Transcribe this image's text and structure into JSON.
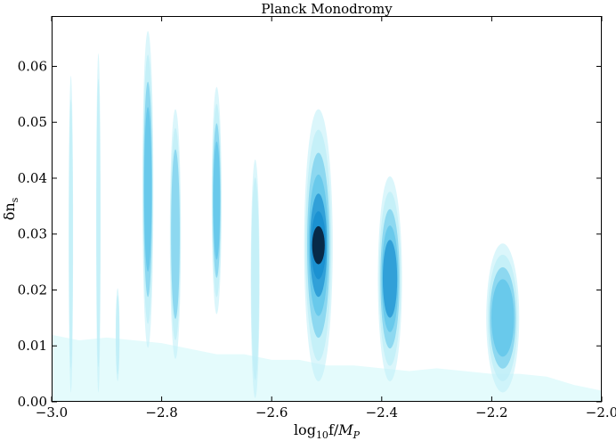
{
  "chart_data": {
    "type": "heatmap",
    "title": "Planck Monodromy",
    "xlabel": "log10f/MP",
    "xlabel_parts": {
      "base": "log",
      "sub": "10",
      "mid": "f/",
      "var": "M",
      "var_sub": "P"
    },
    "ylabel": "δns",
    "ylabel_parts": {
      "base": "δn",
      "sub": "s"
    },
    "xlim": [
      -3.0,
      -2.0
    ],
    "ylim": [
      0.0,
      0.069
    ],
    "x_ticks": [
      -3.0,
      -2.8,
      -2.6,
      -2.4,
      -2.2,
      -2.0
    ],
    "x_tick_labels": [
      "−3.0",
      "−2.8",
      "−2.6",
      "−2.4",
      "−2.2",
      "−2.0"
    ],
    "y_ticks": [
      0.0,
      0.01,
      0.02,
      0.03,
      0.04,
      0.05,
      0.06
    ],
    "y_tick_labels": [
      "0.00",
      "0.01",
      "0.02",
      "0.03",
      "0.04",
      "0.05",
      "0.06"
    ],
    "grid": false,
    "legend": "none",
    "colors": {
      "base": "#e4fbfc",
      "light": "#bdeef7",
      "mid": "#5ec4ea",
      "strong": "#1a8fd0",
      "peak": "#051830"
    },
    "baseline_band": {
      "x": [
        -3.0,
        -2.95,
        -2.9,
        -2.85,
        -2.8,
        -2.75,
        -2.7,
        -2.65,
        -2.6,
        -2.55,
        -2.5,
        -2.45,
        -2.4,
        -2.35,
        -2.3,
        -2.25,
        -2.2,
        -2.15,
        -2.1,
        -2.05,
        -2.0
      ],
      "y": [
        0.012,
        0.011,
        0.0115,
        0.011,
        0.0105,
        0.0095,
        0.0085,
        0.0085,
        0.0075,
        0.0075,
        0.0065,
        0.0065,
        0.006,
        0.0055,
        0.006,
        0.0055,
        0.005,
        0.005,
        0.0045,
        0.003,
        0.002
      ]
    },
    "ridges": [
      {
        "x": -2.965,
        "y_center": 0.03,
        "y_top": 0.058,
        "width": 0.004,
        "peak_intensity": 0.22
      },
      {
        "x": -2.915,
        "y_center": 0.032,
        "y_top": 0.062,
        "width": 0.004,
        "peak_intensity": 0.25
      },
      {
        "x": -2.88,
        "y_center": 0.012,
        "y_top": 0.02,
        "width": 0.003,
        "peak_intensity": 0.1
      },
      {
        "x": -2.825,
        "y_center": 0.038,
        "y_top": 0.066,
        "width": 0.01,
        "peak_intensity": 0.55
      },
      {
        "x": -2.775,
        "y_center": 0.03,
        "y_top": 0.052,
        "width": 0.01,
        "peak_intensity": 0.4
      },
      {
        "x": -2.7,
        "y_center": 0.036,
        "y_top": 0.056,
        "width": 0.009,
        "peak_intensity": 0.6
      },
      {
        "x": -2.63,
        "y_center": 0.022,
        "y_top": 0.043,
        "width": 0.008,
        "peak_intensity": 0.3
      },
      {
        "x": -2.515,
        "y_center": 0.028,
        "y_top": 0.052,
        "width": 0.026,
        "peak_intensity": 1.0
      },
      {
        "x": -2.385,
        "y_center": 0.022,
        "y_top": 0.04,
        "width": 0.022,
        "peak_intensity": 0.75
      },
      {
        "x": -2.18,
        "y_center": 0.015,
        "y_top": 0.028,
        "width": 0.03,
        "peak_intensity": 0.5
      }
    ]
  }
}
